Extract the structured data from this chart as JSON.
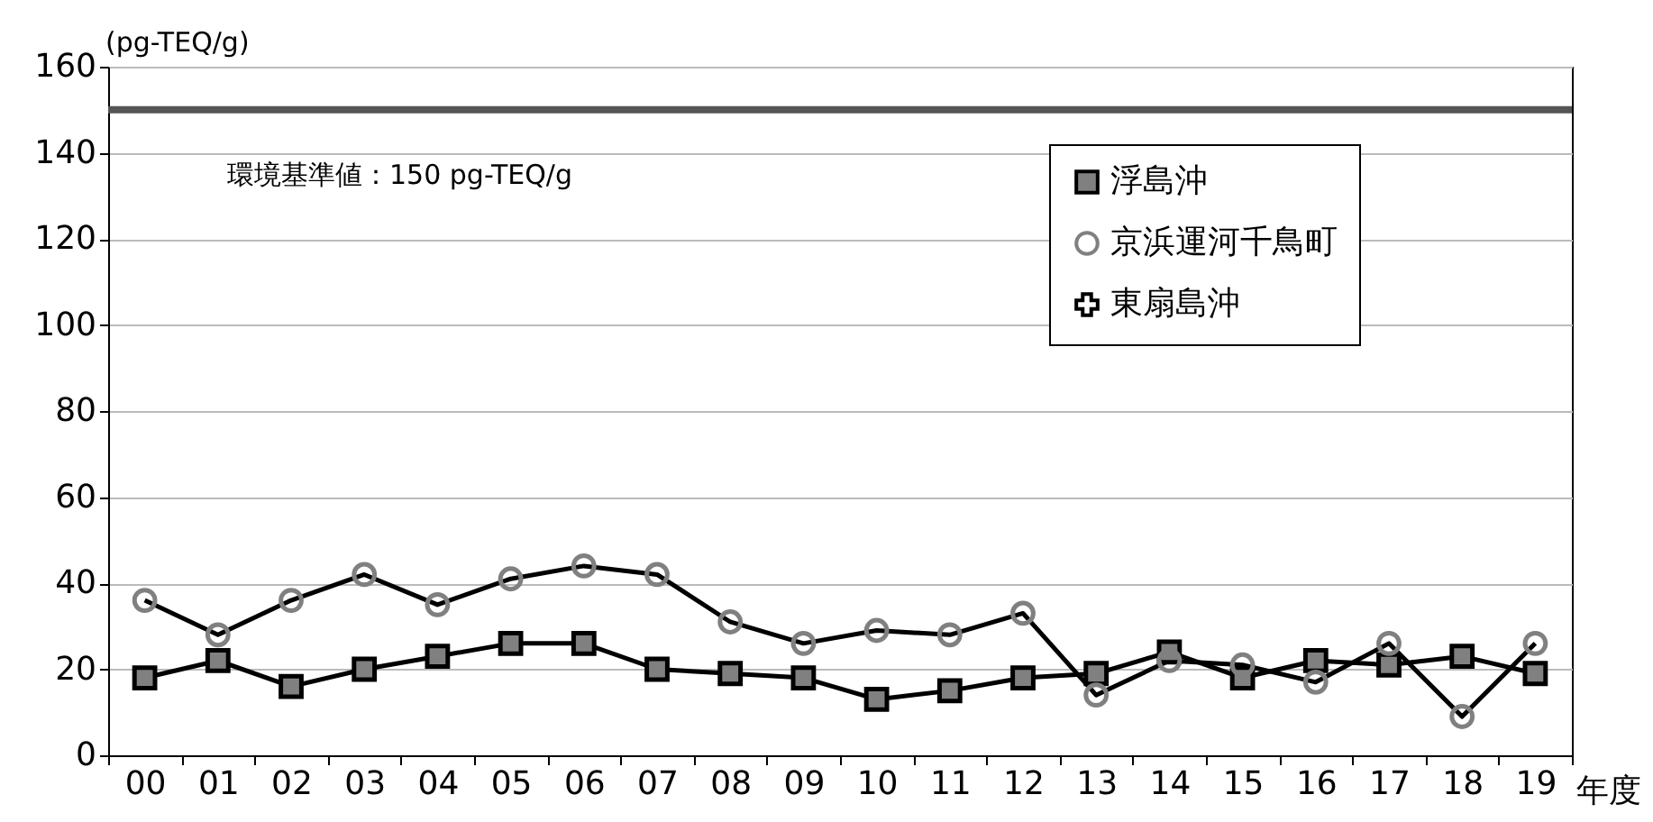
{
  "chart_data": {
    "type": "line",
    "ylabel": "(pg-TEQ/g)",
    "xlabel": "年度",
    "categories": [
      "00",
      "01",
      "02",
      "03",
      "04",
      "05",
      "06",
      "07",
      "08",
      "09",
      "10",
      "11",
      "12",
      "13",
      "14",
      "15",
      "16",
      "17",
      "18",
      "19"
    ],
    "series": [
      {
        "name": "浮島沖",
        "color": "#808080",
        "marker": "square",
        "values": [
          18,
          22,
          16,
          20,
          23,
          26,
          26,
          20,
          19,
          18,
          13,
          15,
          18,
          19,
          24,
          18,
          22,
          21,
          23,
          19
        ]
      },
      {
        "name": "京浜運河千鳥町",
        "color": "#808080",
        "marker": "circle",
        "values": [
          36,
          28,
          36,
          42,
          35,
          41,
          44,
          42,
          31,
          26,
          29,
          28,
          33,
          14,
          22,
          21,
          17,
          26,
          9,
          26
        ]
      },
      {
        "name": "東扇島沖",
        "color": "#000000",
        "marker": "cross",
        "values": [
          null,
          null,
          null,
          null,
          null,
          null,
          null,
          null,
          null,
          null,
          null,
          null,
          null,
          null,
          null,
          null,
          null,
          null,
          null,
          null
        ]
      }
    ],
    "ylim": [
      0,
      160
    ],
    "yticks": [
      0,
      20,
      40,
      60,
      80,
      100,
      120,
      140,
      160
    ],
    "grid": "y",
    "legend": "top right",
    "ref_lines": [
      {
        "axis": "y",
        "value": 150,
        "label": "環境基準値：150 pg-TEQ/g",
        "color": "#555555"
      }
    ]
  }
}
